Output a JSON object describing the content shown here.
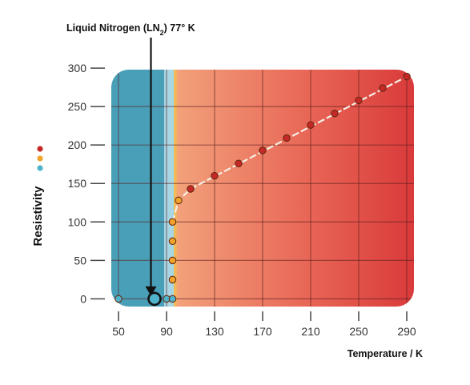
{
  "chart_data": {
    "type": "scatter",
    "title": "",
    "xlabel": "Temperature / K",
    "ylabel": "Resistivity",
    "xlim": [
      44,
      296
    ],
    "ylim": [
      -10,
      298
    ],
    "xticks": [
      50,
      90,
      130,
      170,
      210,
      250,
      290
    ],
    "yticks": [
      0,
      50,
      100,
      150,
      200,
      250,
      300
    ],
    "annotation": {
      "text_before": "Liquid Nitrogen (LN",
      "subscript": "2",
      "text_after": ") 77° K",
      "x": 77
    },
    "legend_colors": [
      "#c62828",
      "#f2a32b",
      "#4fb3cc"
    ],
    "grid": true,
    "series": [
      {
        "color": "#4fb3cc",
        "points": [
          [
            50,
            0
          ],
          [
            90,
            0
          ],
          [
            95,
            0
          ]
        ]
      },
      {
        "color": "#f2a32b",
        "points": [
          [
            95,
            25
          ],
          [
            95,
            50
          ],
          [
            95,
            75
          ],
          [
            95,
            100
          ],
          [
            100,
            128
          ]
        ]
      },
      {
        "color": "#c62828",
        "points": [
          [
            110,
            143
          ],
          [
            130,
            160
          ],
          [
            150,
            176
          ],
          [
            170,
            193
          ],
          [
            190,
            209
          ],
          [
            210,
            226
          ],
          [
            230,
            241
          ],
          [
            250,
            258
          ],
          [
            270,
            274
          ],
          [
            290,
            289
          ]
        ]
      }
    ],
    "highlight_point": {
      "x": 80,
      "y": 0,
      "color": "#4fb3cc"
    }
  },
  "colors": {
    "superconducting": "#4a9fb8",
    "superconducting_light": "#a8d6e4",
    "transition": "#f3c24a",
    "warm_start": "#f2a07a",
    "warm_end": "#d93a3a",
    "curve": "#f5efe6"
  }
}
